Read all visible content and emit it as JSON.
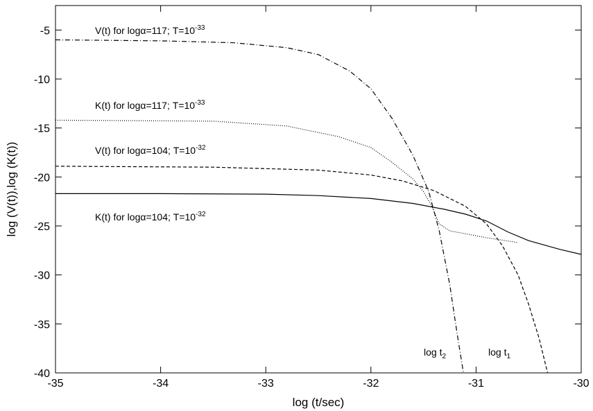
{
  "chart_data": {
    "type": "line",
    "title": "",
    "xlabel": "log (t/sec)",
    "ylabel": "log (V(t)),log (K(t))",
    "xlim": [
      -35,
      -30
    ],
    "ylim": [
      -40,
      -2.5
    ],
    "xticks": [
      "-35",
      "-34",
      "-33",
      "-32",
      "-31",
      "-30"
    ],
    "yticks": [
      "-5",
      "-10",
      "-15",
      "-20",
      "-25",
      "-30",
      "-35",
      "-40"
    ],
    "grid": false,
    "legend": "none",
    "line_color": "#000000",
    "series": [
      {
        "name": "V(t) for logα=117; T=10-33",
        "style": "dash-dot",
        "x": [
          -35,
          -34,
          -33.3,
          -32.8,
          -32.5,
          -32.2,
          -32.0,
          -31.8,
          -31.6,
          -31.45,
          -31.35,
          -31.25,
          -31.18,
          -31.12
        ],
        "y": [
          -6.0,
          -6.1,
          -6.3,
          -6.8,
          -7.5,
          -9.2,
          -11.0,
          -14.0,
          -17.8,
          -21.5,
          -25.5,
          -31.0,
          -36.0,
          -40.0
        ]
      },
      {
        "name": "K(t) for logα=117; T=10-33",
        "style": "dotted",
        "x": [
          -35,
          -33.5,
          -32.8,
          -32.3,
          -32.0,
          -31.8,
          -31.6,
          -31.5,
          -31.42,
          -31.35,
          -31.25,
          -31.1,
          -30.9,
          -30.6
        ],
        "y": [
          -14.2,
          -14.3,
          -14.8,
          -15.9,
          -17.0,
          -18.5,
          -20.2,
          -21.5,
          -23.0,
          -24.8,
          -25.5,
          -25.8,
          -26.2,
          -26.7
        ]
      },
      {
        "name": "V(t) for logα=104; T=10-32",
        "style": "dashed",
        "x": [
          -35,
          -33.5,
          -32.5,
          -32.0,
          -31.7,
          -31.4,
          -31.1,
          -30.9,
          -30.75,
          -30.6,
          -30.5,
          -30.4,
          -30.32
        ],
        "y": [
          -18.9,
          -19.0,
          -19.3,
          -19.8,
          -20.4,
          -21.4,
          -23.0,
          -24.8,
          -27.0,
          -30.0,
          -33.0,
          -36.5,
          -40.0
        ]
      },
      {
        "name": "K(t) for logα=104; T=10-32",
        "style": "solid",
        "x": [
          -35,
          -34,
          -33,
          -32.5,
          -32.0,
          -31.6,
          -31.3,
          -31.1,
          -30.9,
          -30.7,
          -30.5,
          -30.2,
          -30.0
        ],
        "y": [
          -21.7,
          -21.7,
          -21.75,
          -21.9,
          -22.2,
          -22.7,
          -23.3,
          -23.8,
          -24.5,
          -25.6,
          -26.5,
          -27.4,
          -27.9
        ]
      }
    ],
    "annotations": [
      {
        "id": "v117",
        "base": "V(t) for logα=117; T=10",
        "sup": "-33"
      },
      {
        "id": "k117",
        "base": "K(t) for logα=117; T=10",
        "sup": "-33"
      },
      {
        "id": "v104",
        "base": "V(t) for logα=104; T=10",
        "sup": "-32"
      },
      {
        "id": "k104",
        "base": "K(t) for logα=104; T=10",
        "sup": "-32"
      },
      {
        "id": "t2",
        "base": "log t",
        "sub": "2"
      },
      {
        "id": "t1",
        "base": "log t",
        "sub": "1"
      }
    ]
  }
}
